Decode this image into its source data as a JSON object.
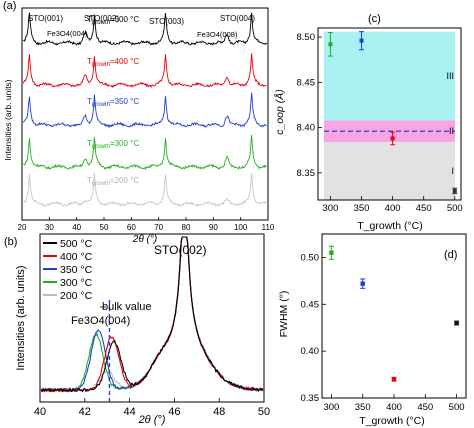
{
  "figure": {
    "panels": [
      "(a)",
      "(b)",
      "(c)",
      "(d)"
    ]
  },
  "chart_data": [
    {
      "panel": "(a)",
      "type": "line",
      "xlabel": "2θ (°)",
      "ylabel": "Intensities (arb. units)",
      "xlim": [
        20,
        110
      ],
      "xticks": [
        20,
        30,
        40,
        50,
        60,
        70,
        80,
        90,
        100,
        110
      ],
      "peak_labels": [
        "STO(001)",
        "STO(002)",
        "STO(003)",
        "STO(004)",
        "Fe3O4(004)",
        "Fe3O4(008)"
      ],
      "series": [
        {
          "name": "T_growth=500 °C",
          "color": "#000000",
          "label_text": "=500 °C"
        },
        {
          "name": "T_growth=400 °C",
          "color": "#e8000b",
          "label_text": "=400 °C"
        },
        {
          "name": "T_growth=350 °C",
          "color": "#1f3fd6",
          "label_text": "=350 °C"
        },
        {
          "name": "T_growth=300 °C",
          "color": "#22b022",
          "label_text": "=300 °C"
        },
        {
          "name": "T_growth=200 °C",
          "color": "#c8c8c8",
          "label_text": "=200 °C"
        }
      ],
      "peaks_2theta": [
        22.7,
        46.5,
        72.5,
        104.0
      ],
      "fe3o4_peaks_2theta": [
        43.1,
        95.0
      ]
    },
    {
      "panel": "(b)",
      "type": "line",
      "xlabel": "2θ (°)",
      "ylabel": "Intensities (arb. units)",
      "xlim": [
        40,
        50
      ],
      "xticks": [
        40,
        42,
        44,
        46,
        48,
        50
      ],
      "annotations": [
        "STO(002)",
        "Fe3O4(004)",
        "bulk value"
      ],
      "bulk_value_2theta": 43.1,
      "legend": [
        "500 °C",
        "400 °C",
        "350 °C",
        "300 °C",
        "200 °C"
      ],
      "series": [
        {
          "name": "500 °C",
          "color": "#000000",
          "fe_peak": 43.3,
          "fe_height": 0.31
        },
        {
          "name": "400 °C",
          "color": "#e8000b",
          "fe_peak": 43.2,
          "fe_height": 0.34
        },
        {
          "name": "350 °C",
          "color": "#1f3fd6",
          "fe_peak": 42.6,
          "fe_height": 0.39
        },
        {
          "name": "300 °C",
          "color": "#22b022",
          "fe_peak": 42.5,
          "fe_height": 0.36
        },
        {
          "name": "200 °C",
          "color": "#bdbdbd",
          "fe_peak": 43.0,
          "fe_height": 0.12
        }
      ],
      "sto_peak_2theta": 46.45
    },
    {
      "panel": "(c)",
      "type": "scatter",
      "xlabel": "T_growth (°C)",
      "ylabel": "c_oop (Å)",
      "xlim": [
        280,
        510
      ],
      "ylim": [
        8.32,
        8.51
      ],
      "xticks": [
        300,
        350,
        400,
        450,
        500
      ],
      "yticks": [
        8.35,
        8.4,
        8.45,
        8.5
      ],
      "regions": [
        {
          "label": "I",
          "from": 8.32,
          "to": 8.384,
          "color": "#e2e2e2"
        },
        {
          "label": "II",
          "from": 8.384,
          "to": 8.408,
          "color": "#f7a6e3"
        },
        {
          "label": "III",
          "from": 8.408,
          "to": 8.51,
          "color": "#a8f0f2"
        }
      ],
      "bulk_line": 8.396,
      "points": [
        {
          "x": 300,
          "y": 8.492,
          "err": 0.013,
          "color": "#22b022"
        },
        {
          "x": 350,
          "y": 8.496,
          "err": 0.01,
          "color": "#1f3fd6"
        },
        {
          "x": 400,
          "y": 8.388,
          "err": 0.007,
          "color": "#e8000b"
        },
        {
          "x": 500,
          "y": 8.33,
          "err": 0.003,
          "color": "#333333"
        }
      ]
    },
    {
      "panel": "(d)",
      "type": "scatter",
      "xlabel": "T_growth (°C)",
      "ylabel": "FWHM (°)",
      "xlim": [
        285,
        515
      ],
      "ylim": [
        0.35,
        0.525
      ],
      "xticks": [
        300,
        350,
        400,
        450,
        500
      ],
      "yticks": [
        0.35,
        0.4,
        0.45,
        0.5
      ],
      "points": [
        {
          "x": 300,
          "y": 0.505,
          "err": 0.007,
          "color": "#22b022"
        },
        {
          "x": 350,
          "y": 0.472,
          "err": 0.005,
          "color": "#1f3fd6"
        },
        {
          "x": 400,
          "y": 0.37,
          "err": 0.002,
          "color": "#e8000b"
        },
        {
          "x": 500,
          "y": 0.43,
          "err": 0.002,
          "color": "#111111"
        }
      ]
    }
  ]
}
